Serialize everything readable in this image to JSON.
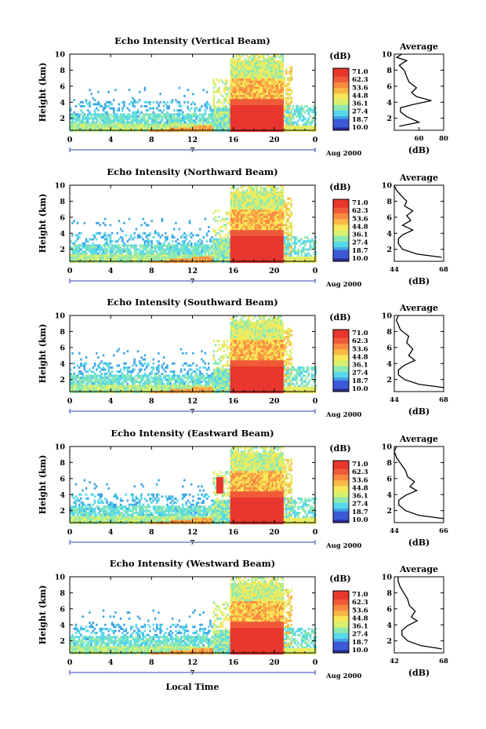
{
  "figure": {
    "x_axis_label": "Local Time",
    "y_axis_label": "Height (km)",
    "date_label": "Aug 2000",
    "day_label": "7",
    "colorbar_title": "(dB)",
    "colorbar_levels": [
      "71.0",
      "62.3",
      "53.6",
      "44.8",
      "36.1",
      "27.4",
      "18.7",
      "10.0"
    ],
    "average_title": "Average",
    "average_xlabel": "(dB)",
    "colors": [
      "#2b2b8f",
      "#3c5ad8",
      "#3fa6e6",
      "#58d8e8",
      "#8fe8b0",
      "#d8f070",
      "#f8e858",
      "#f8b848",
      "#f88a40",
      "#f05a38",
      "#e8362e"
    ]
  },
  "chart_data": [
    {
      "type": "heatmap",
      "title": "Echo Intensity (Vertical Beam)",
      "xlabel": "",
      "ylabel": "Height (km)",
      "xlim": [
        0,
        24
      ],
      "ylim": [
        0.5,
        10
      ],
      "x_ticks": [
        "0",
        "4",
        "8",
        "12",
        "16",
        "20",
        "0"
      ],
      "y_ticks": [
        "2",
        "4",
        "6",
        "8",
        "10"
      ],
      "colorbar_range": [
        10.0,
        71.0
      ],
      "average_profile": {
        "xlim": [
          40,
          80
        ],
        "x_ticks": [
          "60",
          "80"
        ],
        "points": [
          [
            44,
            1.0
          ],
          [
            60,
            1.5
          ],
          [
            50,
            2.2
          ],
          [
            45,
            2.8
          ],
          [
            45,
            3.3
          ],
          [
            55,
            3.7
          ],
          [
            70,
            4.2
          ],
          [
            58,
            4.7
          ],
          [
            54,
            5.2
          ],
          [
            58,
            5.8
          ],
          [
            52,
            6.5
          ],
          [
            50,
            7.2
          ],
          [
            48,
            8
          ],
          [
            44,
            8.6
          ],
          [
            50,
            9.2
          ],
          [
            42,
            9.6
          ],
          [
            46,
            10
          ]
        ]
      }
    },
    {
      "type": "heatmap",
      "title": "Echo Intensity (Northward Beam)",
      "xlabel": "",
      "ylabel": "Height (km)",
      "xlim": [
        0,
        24
      ],
      "ylim": [
        0.5,
        10
      ],
      "x_ticks": [
        "0",
        "4",
        "8",
        "12",
        "16",
        "20",
        "0"
      ],
      "y_ticks": [
        "2",
        "4",
        "6",
        "8",
        "10"
      ],
      "colorbar_range": [
        10.0,
        71.0
      ],
      "average_profile": {
        "xlim": [
          44,
          68
        ],
        "x_ticks": [
          "44",
          "68"
        ],
        "points": [
          [
            67,
            1.0
          ],
          [
            55,
            1.4
          ],
          [
            48,
            2.0
          ],
          [
            46,
            2.7
          ],
          [
            46,
            3.3
          ],
          [
            48,
            3.8
          ],
          [
            53,
            4.4
          ],
          [
            48,
            5.0
          ],
          [
            52,
            5.6
          ],
          [
            50,
            6.2
          ],
          [
            53,
            6.8
          ],
          [
            49,
            7.4
          ],
          [
            50,
            8
          ],
          [
            47,
            8.8
          ],
          [
            45,
            9.4
          ],
          [
            44,
            10
          ]
        ]
      }
    },
    {
      "type": "heatmap",
      "title": "Echo Intensity (Southward Beam)",
      "xlabel": "",
      "ylabel": "Height (km)",
      "xlim": [
        0,
        24
      ],
      "ylim": [
        0.5,
        10
      ],
      "x_ticks": [
        "0",
        "4",
        "8",
        "12",
        "16",
        "20",
        "0"
      ],
      "y_ticks": [
        "2",
        "4",
        "6",
        "8",
        "10"
      ],
      "colorbar_range": [
        10.0,
        71.0
      ],
      "average_profile": {
        "xlim": [
          44,
          68
        ],
        "x_ticks": [
          "44",
          "68"
        ],
        "points": [
          [
            68,
            1.0
          ],
          [
            56,
            1.4
          ],
          [
            49,
            2.0
          ],
          [
            46,
            2.6
          ],
          [
            46,
            3.2
          ],
          [
            49,
            3.8
          ],
          [
            54,
            4.4
          ],
          [
            51,
            5.0
          ],
          [
            53,
            5.8
          ],
          [
            50,
            6.6
          ],
          [
            51,
            7.4
          ],
          [
            47,
            8.2
          ],
          [
            46,
            8.8
          ],
          [
            45,
            9.4
          ],
          [
            46,
            10
          ]
        ]
      }
    },
    {
      "type": "heatmap",
      "title": "Echo Intensity (Eastward Beam)",
      "xlabel": "",
      "ylabel": "Height (km)",
      "xlim": [
        0,
        24
      ],
      "ylim": [
        0.5,
        10
      ],
      "x_ticks": [
        "0",
        "4",
        "8",
        "12",
        "16",
        "20",
        "0"
      ],
      "y_ticks": [
        "2",
        "4",
        "6",
        "8",
        "10"
      ],
      "colorbar_range": [
        10.0,
        71.0
      ],
      "average_profile": {
        "xlim": [
          44,
          66
        ],
        "x_ticks": [
          "44",
          "66"
        ],
        "points": [
          [
            66,
            1.0
          ],
          [
            55,
            1.4
          ],
          [
            49,
            2.0
          ],
          [
            46,
            2.7
          ],
          [
            46,
            3.3
          ],
          [
            49,
            3.9
          ],
          [
            54,
            4.5
          ],
          [
            51,
            5.0
          ],
          [
            53,
            5.6
          ],
          [
            50,
            6.2
          ],
          [
            49,
            7.0
          ],
          [
            47,
            7.8
          ],
          [
            45,
            8.6
          ],
          [
            44,
            9.4
          ],
          [
            45,
            10
          ]
        ]
      }
    },
    {
      "type": "heatmap",
      "title": "Echo Intensity (Westward Beam)",
      "xlabel": "Local Time",
      "ylabel": "Height (km)",
      "xlim": [
        0,
        24
      ],
      "ylim": [
        0.5,
        10
      ],
      "x_ticks": [
        "0",
        "4",
        "8",
        "12",
        "16",
        "20",
        "0"
      ],
      "y_ticks": [
        "2",
        "4",
        "6",
        "8",
        "10"
      ],
      "colorbar_range": [
        10.0,
        71.0
      ],
      "average_profile": {
        "xlim": [
          42,
          68
        ],
        "x_ticks": [
          "42",
          "68"
        ],
        "points": [
          [
            67,
            1.0
          ],
          [
            56,
            1.4
          ],
          [
            49,
            2.0
          ],
          [
            46,
            2.7
          ],
          [
            46,
            3.3
          ],
          [
            49,
            3.9
          ],
          [
            54,
            4.5
          ],
          [
            51,
            5.0
          ],
          [
            53,
            5.7
          ],
          [
            50,
            6.4
          ],
          [
            49,
            7.2
          ],
          [
            47,
            8.0
          ],
          [
            45,
            8.8
          ],
          [
            44,
            9.5
          ],
          [
            44,
            10
          ]
        ]
      }
    }
  ]
}
